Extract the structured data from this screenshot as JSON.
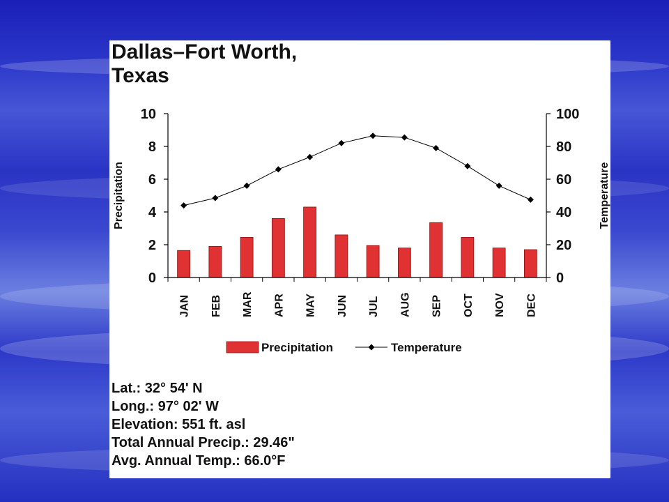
{
  "chart_data": {
    "type": "bar+line",
    "title": "Dallas–Fort Worth, Texas",
    "title_lines": [
      "Dallas–Fort Worth,",
      "Texas"
    ],
    "categories": [
      "JAN",
      "FEB",
      "MAR",
      "APR",
      "MAY",
      "JUN",
      "JUL",
      "AUG",
      "SEP",
      "OCT",
      "NOV",
      "DEC"
    ],
    "series": [
      {
        "name": "Precipitation",
        "kind": "bar",
        "axis": "left",
        "color": "#e03232",
        "values": [
          1.65,
          1.9,
          2.45,
          3.6,
          4.3,
          2.6,
          1.95,
          1.8,
          3.35,
          2.45,
          1.8,
          1.7
        ]
      },
      {
        "name": "Temperature",
        "kind": "line",
        "axis": "right",
        "color": "#000000",
        "values": [
          44,
          48.5,
          56,
          66,
          73.5,
          82,
          86.5,
          85.5,
          79,
          68,
          56,
          47.5
        ]
      }
    ],
    "ylabel": "Precipitation",
    "ylabel_right": "Temperature",
    "ylim": [
      0,
      10
    ],
    "ylim_right": [
      0,
      100
    ],
    "yticks": [
      "0",
      "2",
      "4",
      "6",
      "8",
      "10"
    ],
    "yticks_right": [
      "0",
      "20",
      "40",
      "60",
      "80",
      "100"
    ],
    "grid": false,
    "legend_position": "bottom"
  },
  "info": {
    "lat": "Lat.: 32° 54' N",
    "long": "Long.: 97° 02' W",
    "elevation": "Elevation: 551 ft. asl",
    "total_precip": "Total Annual Precip.: 29.46\"",
    "avg_temp": "Avg. Annual Temp.: 66.0°F"
  }
}
